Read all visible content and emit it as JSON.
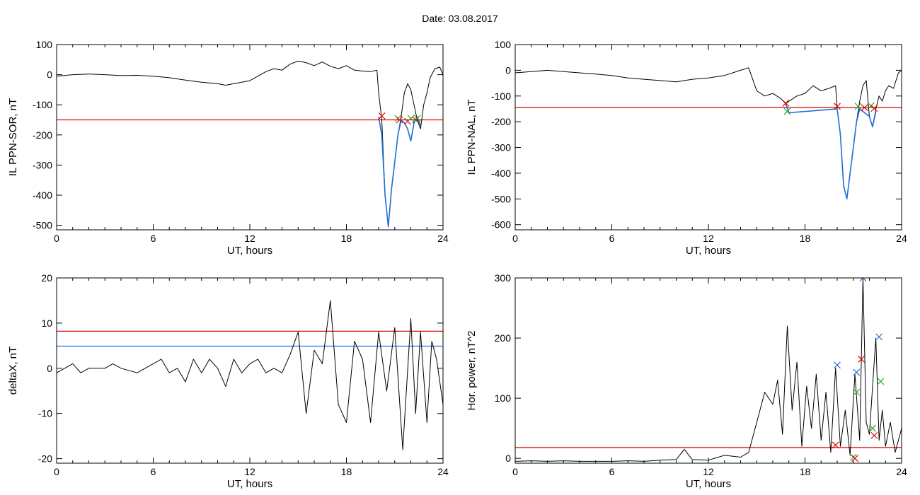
{
  "header": {
    "date_label": "Date:  03.08.2017"
  },
  "chart_data": [
    {
      "id": "sor",
      "type": "line",
      "title": "",
      "xlabel": "UT, hours",
      "ylabel": "IL PPN-SOR, nT",
      "xlim": [
        0,
        24
      ],
      "ylim": [
        -515,
        100
      ],
      "xticks": [
        0,
        6,
        12,
        18,
        24
      ],
      "yticks": [
        100,
        0,
        -100,
        -200,
        -300,
        -400,
        -500
      ],
      "hlines": [
        {
          "y": -150,
          "color": "#e00000"
        }
      ],
      "series": [
        {
          "color": "#000000",
          "x": [
            0,
            1,
            2,
            3,
            4,
            5,
            6,
            7,
            8,
            9,
            10,
            10.5,
            11,
            12,
            12.5,
            13,
            13.5,
            14,
            14.5,
            15,
            15.5,
            16,
            16.5,
            17,
            17.5,
            18,
            18.5,
            19,
            19.5,
            19.9,
            20.0,
            20.2,
            20.4,
            20.6,
            20.8,
            21.0,
            21.2,
            21.4,
            21.6,
            21.8,
            22.0,
            22.2,
            22.4,
            22.6,
            22.8,
            23.0,
            23.2,
            23.5,
            23.8,
            24
          ],
          "y": [
            -5,
            0,
            2,
            0,
            -3,
            -2,
            -5,
            -10,
            -18,
            -25,
            -30,
            -35,
            -30,
            -20,
            -5,
            10,
            20,
            15,
            35,
            45,
            40,
            30,
            42,
            28,
            20,
            30,
            15,
            12,
            10,
            15,
            -60,
            -150,
            -400,
            -505,
            -380,
            -290,
            -200,
            -140,
            -60,
            -30,
            -50,
            -100,
            -150,
            -180,
            -100,
            -60,
            -10,
            20,
            25,
            0
          ]
        },
        {
          "color": "#1f6fd6",
          "x": [
            20.0,
            20.2,
            20.4,
            20.6,
            20.8,
            21.0,
            21.2,
            21.4,
            21.6,
            21.8,
            22.0,
            22.2,
            22.4,
            22.6
          ],
          "y": [
            -140,
            -200,
            -400,
            -505,
            -380,
            -290,
            -200,
            -150,
            -160,
            -180,
            -220,
            -160,
            -140,
            -170
          ]
        }
      ],
      "markers": [
        {
          "x": 20.2,
          "y": -137,
          "color": "#e00000"
        },
        {
          "x": 21.2,
          "y": -145,
          "color": "#2aa52a"
        },
        {
          "x": 21.3,
          "y": -150,
          "color": "#e00000"
        },
        {
          "x": 21.8,
          "y": -155,
          "color": "#e00000"
        },
        {
          "x": 22.0,
          "y": -145,
          "color": "#2aa52a"
        },
        {
          "x": 22.3,
          "y": -150,
          "color": "#e00000"
        },
        {
          "x": 22.4,
          "y": -145,
          "color": "#2aa52a"
        }
      ]
    },
    {
      "id": "nal",
      "type": "line",
      "title": "",
      "xlabel": "UT, hours",
      "ylabel": "IL PPN-NAL, nT",
      "xlim": [
        0,
        24
      ],
      "ylim": [
        -620,
        100
      ],
      "xticks": [
        0,
        6,
        12,
        18,
        24
      ],
      "yticks": [
        100,
        0,
        -100,
        -200,
        -300,
        -400,
        -500,
        -600
      ],
      "hlines": [
        {
          "y": -145,
          "color": "#e00000"
        }
      ],
      "series": [
        {
          "color": "#000000",
          "x": [
            0,
            1,
            2,
            3,
            4,
            5,
            6,
            7,
            8,
            9,
            10,
            11,
            12,
            13,
            14,
            14.5,
            15,
            15.5,
            16,
            16.5,
            16.8,
            17,
            17.5,
            18,
            18.5,
            19,
            19.5,
            19.9,
            20.0,
            20.2,
            20.4,
            20.6,
            20.8,
            21.0,
            21.2,
            21.4,
            21.6,
            21.8,
            22.0,
            22.2,
            22.4,
            22.6,
            22.8,
            23.0,
            23.2,
            23.5,
            23.8,
            24
          ],
          "y": [
            -10,
            -5,
            0,
            -5,
            -10,
            -15,
            -20,
            -30,
            -35,
            -40,
            -45,
            -35,
            -30,
            -20,
            0,
            10,
            -80,
            -100,
            -90,
            -110,
            -130,
            -120,
            -100,
            -90,
            -60,
            -80,
            -70,
            -60,
            -150,
            -250,
            -450,
            -500,
            -400,
            -300,
            -200,
            -120,
            -60,
            -40,
            -180,
            -220,
            -150,
            -100,
            -120,
            -80,
            -60,
            -70,
            -10,
            0
          ]
        },
        {
          "color": "#1f6fd6",
          "x": [
            16.8,
            17.0,
            20.0,
            20.2,
            20.4,
            20.6,
            20.8,
            21.0,
            21.2,
            21.4,
            22.0,
            22.2,
            22.4
          ],
          "y": [
            -130,
            -165,
            -150,
            -250,
            -450,
            -500,
            -400,
            -300,
            -200,
            -150,
            -180,
            -220,
            -160
          ]
        }
      ],
      "markers": [
        {
          "x": 16.8,
          "y": -128,
          "color": "#e00000"
        },
        {
          "x": 16.9,
          "y": -160,
          "color": "#2aa52a"
        },
        {
          "x": 20.0,
          "y": -140,
          "color": "#e00000"
        },
        {
          "x": 21.3,
          "y": -140,
          "color": "#2aa52a"
        },
        {
          "x": 21.7,
          "y": -145,
          "color": "#e00000"
        },
        {
          "x": 22.1,
          "y": -138,
          "color": "#2aa52a"
        },
        {
          "x": 22.3,
          "y": -148,
          "color": "#e00000"
        }
      ]
    },
    {
      "id": "deltax",
      "type": "line",
      "title": "",
      "xlabel": "UT, hours",
      "ylabel": "deltaX, nT",
      "xlim": [
        0,
        24
      ],
      "ylim": [
        -21,
        20
      ],
      "xticks": [
        0,
        6,
        12,
        18,
        24
      ],
      "yticks": [
        20,
        10,
        0,
        -10,
        -20
      ],
      "hlines": [
        {
          "y": 8.2,
          "color": "#e00000"
        },
        {
          "y": 4.9,
          "color": "#1f6fd6"
        }
      ],
      "series": [
        {
          "color": "#000000",
          "x": [
            0,
            0.5,
            1,
            1.5,
            2,
            3,
            3.5,
            4,
            5,
            5.5,
            6,
            6.5,
            7,
            7.5,
            8,
            8.5,
            9,
            9.5,
            10,
            10.5,
            11,
            11.5,
            12,
            12.5,
            13,
            13.5,
            14,
            14.5,
            15,
            15.5,
            16,
            16.5,
            17,
            17.5,
            18,
            18.5,
            19,
            19.5,
            20,
            20.5,
            21,
            21.5,
            22,
            22.3,
            22.6,
            23,
            23.3,
            23.6,
            24
          ],
          "y": [
            -1,
            0,
            1,
            -1,
            0,
            0,
            1,
            0,
            -1,
            0,
            1,
            2,
            -1,
            0,
            -3,
            2,
            -1,
            2,
            0,
            -4,
            2,
            -1,
            1,
            2,
            -1,
            0,
            -1,
            3,
            8,
            -10,
            4,
            1,
            15,
            -8,
            -12,
            6,
            2,
            -12,
            8,
            -5,
            9,
            -18,
            11,
            -10,
            8,
            -12,
            6,
            2,
            -8
          ]
        }
      ],
      "markers": []
    },
    {
      "id": "power",
      "type": "line",
      "title": "",
      "xlabel": "UT, hours",
      "ylabel": "Hor. power, nT^2",
      "xlim": [
        0,
        24
      ],
      "ylim": [
        -8,
        300
      ],
      "xticks": [
        0,
        6,
        12,
        18,
        24
      ],
      "yticks": [
        300,
        200,
        100,
        0
      ],
      "hlines": [
        {
          "y": 18,
          "color": "#e00000"
        }
      ],
      "series": [
        {
          "color": "#000000",
          "x": [
            0,
            1,
            2,
            3,
            4,
            5,
            6,
            7,
            8,
            9,
            10,
            10.5,
            11,
            12,
            13,
            14,
            14.5,
            15,
            15.5,
            16,
            16.3,
            16.6,
            16.9,
            17.2,
            17.5,
            17.8,
            18.1,
            18.4,
            18.7,
            19,
            19.3,
            19.6,
            19.9,
            20.2,
            20.5,
            20.8,
            21.1,
            21.4,
            21.6,
            21.8,
            22.0,
            22.2,
            22.4,
            22.6,
            22.8,
            23.0,
            23.3,
            23.6,
            24
          ],
          "y": [
            -5,
            -4,
            -5,
            -4,
            -5,
            -5,
            -5,
            -4,
            -5,
            -3,
            -2,
            15,
            -2,
            -3,
            5,
            2,
            10,
            60,
            110,
            90,
            130,
            40,
            220,
            80,
            160,
            20,
            120,
            50,
            140,
            30,
            110,
            10,
            150,
            20,
            80,
            5,
            140,
            30,
            300,
            60,
            40,
            120,
            200,
            30,
            80,
            20,
            60,
            10,
            50
          ]
        }
      ],
      "markers": [
        {
          "x": 20.0,
          "y": 155,
          "color": "#1f6fd6"
        },
        {
          "x": 19.9,
          "y": 22,
          "color": "#e00000"
        },
        {
          "x": 21.2,
          "y": 110,
          "color": "#2aa52a"
        },
        {
          "x": 21.2,
          "y": 143,
          "color": "#1f6fd6"
        },
        {
          "x": 21.5,
          "y": 165,
          "color": "#e00000"
        },
        {
          "x": 21.6,
          "y": 300,
          "color": "#1f6fd6"
        },
        {
          "x": 21.0,
          "y": 2,
          "color": "#2aa52a"
        },
        {
          "x": 21.1,
          "y": 0,
          "color": "#e00000"
        },
        {
          "x": 22.2,
          "y": 50,
          "color": "#2aa52a"
        },
        {
          "x": 22.3,
          "y": 38,
          "color": "#e00000"
        },
        {
          "x": 22.6,
          "y": 202,
          "color": "#1f6fd6"
        },
        {
          "x": 22.7,
          "y": 128,
          "color": "#2aa52a"
        }
      ]
    }
  ]
}
